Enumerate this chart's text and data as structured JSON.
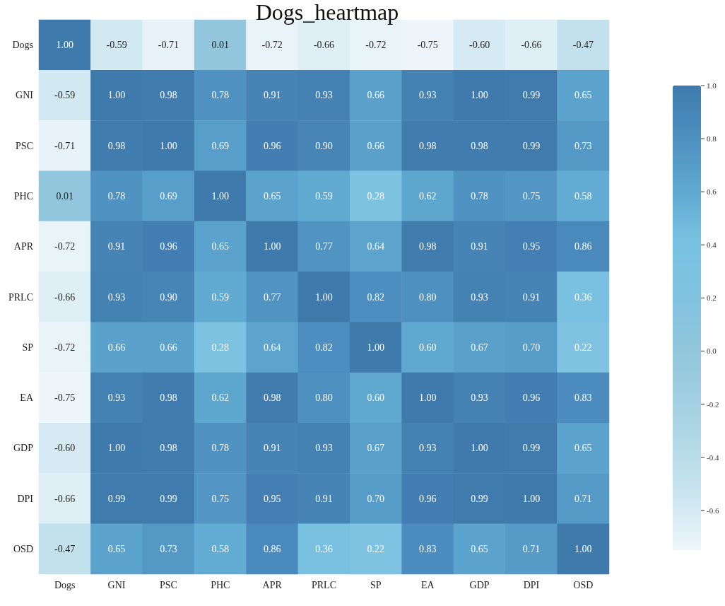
{
  "chart_data": {
    "type": "heatmap",
    "title": "Dogs_heartmap",
    "categories": [
      "Dogs",
      "GNI",
      "PSC",
      "PHC",
      "APR",
      "PRLC",
      "SP",
      "EA",
      "GDP",
      "DPI",
      "OSD"
    ],
    "y_categories": [
      "Dogs",
      "GNI",
      "PSC",
      "PHC",
      "APR",
      "PRLC",
      "SP",
      "EA",
      "GDP",
      "DPI",
      "OSD"
    ],
    "cells": [
      [
        1.0,
        -0.59,
        -0.71,
        0.01,
        -0.72,
        -0.66,
        -0.72,
        -0.75,
        -0.6,
        -0.66,
        -0.47
      ],
      [
        -0.59,
        1.0,
        0.98,
        0.78,
        0.91,
        0.93,
        0.66,
        0.93,
        1.0,
        0.99,
        0.65
      ],
      [
        -0.71,
        0.98,
        1.0,
        0.69,
        0.96,
        0.9,
        0.66,
        0.98,
        0.98,
        0.99,
        0.73
      ],
      [
        0.01,
        0.78,
        0.69,
        1.0,
        0.65,
        0.59,
        0.28,
        0.62,
        0.78,
        0.75,
        0.58
      ],
      [
        -0.72,
        0.91,
        0.96,
        0.65,
        1.0,
        0.77,
        0.64,
        0.98,
        0.91,
        0.95,
        0.86
      ],
      [
        -0.66,
        0.93,
        0.9,
        0.59,
        0.77,
        1.0,
        0.82,
        0.8,
        0.93,
        0.91,
        0.36
      ],
      [
        -0.72,
        0.66,
        0.66,
        0.28,
        0.64,
        0.82,
        1.0,
        0.6,
        0.67,
        0.7,
        0.22
      ],
      [
        -0.75,
        0.93,
        0.98,
        0.62,
        0.98,
        0.8,
        0.6,
        1.0,
        0.93,
        0.96,
        0.83
      ],
      [
        -0.6,
        1.0,
        0.98,
        0.78,
        0.91,
        0.93,
        0.67,
        0.93,
        1.0,
        0.99,
        0.65
      ],
      [
        -0.66,
        0.99,
        0.99,
        0.75,
        0.95,
        0.91,
        0.7,
        0.96,
        0.99,
        1.0,
        0.71
      ],
      [
        -0.47,
        0.65,
        0.73,
        0.58,
        0.86,
        0.36,
        0.22,
        0.83,
        0.65,
        0.71,
        1.0
      ]
    ],
    "cell_labels": [
      [
        "1.00",
        "-0.59",
        "-0.71",
        "0.01",
        "-0.72",
        "-0.66",
        "-0.72",
        "-0.75",
        "-0.60",
        "-0.66",
        "-0.47"
      ],
      [
        "-0.59",
        "1.00",
        "0.98",
        "0.78",
        "0.91",
        "0.93",
        "0.66",
        "0.93",
        "1.00",
        "0.99",
        "0.65"
      ],
      [
        "-0.71",
        "0.98",
        "1.00",
        "0.69",
        "0.96",
        "0.90",
        "0.66",
        "0.98",
        "0.98",
        "0.99",
        "0.73"
      ],
      [
        "0.01",
        "0.78",
        "0.69",
        "1.00",
        "0.65",
        "0.59",
        "0.28",
        "0.62",
        "0.78",
        "0.75",
        "0.58"
      ],
      [
        "-0.72",
        "0.91",
        "0.96",
        "0.65",
        "1.00",
        "0.77",
        "0.64",
        "0.98",
        "0.91",
        "0.95",
        "0.86"
      ],
      [
        "-0.66",
        "0.93",
        "0.90",
        "0.59",
        "0.77",
        "1.00",
        "0.82",
        "0.80",
        "0.93",
        "0.91",
        "0.36"
      ],
      [
        "-0.72",
        "0.66",
        "0.66",
        "0.28",
        "0.64",
        "0.82",
        "1.00",
        "0.60",
        "0.67",
        "0.70",
        "0.22"
      ],
      [
        "-0.75",
        "0.93",
        "0.98",
        "0.62",
        "0.98",
        "0.80",
        "0.60",
        "1.00",
        "0.93",
        "0.96",
        "0.83"
      ],
      [
        "-0.60",
        "1.00",
        "0.98",
        "0.78",
        "0.91",
        "0.93",
        "0.67",
        "0.93",
        "1.00",
        "0.99",
        "0.65"
      ],
      [
        "-0.66",
        "0.99",
        "0.99",
        "0.75",
        "0.95",
        "0.91",
        "0.70",
        "0.96",
        "0.99",
        "1.00",
        "0.71"
      ],
      [
        "-0.47",
        "0.65",
        "0.73",
        "0.58",
        "0.86",
        "0.36",
        "0.22",
        "0.83",
        "0.65",
        "0.71",
        "1.00"
      ]
    ],
    "clim": [
      -0.75,
      1.0
    ],
    "cticks": [
      {
        "value": -0.6,
        "label": "-0.6"
      },
      {
        "value": -0.4,
        "label": "-0.4"
      },
      {
        "value": -0.2,
        "label": "-0.2"
      },
      {
        "value": 0,
        "label": "0.0"
      },
      {
        "value": 0.2,
        "label": "0.2"
      },
      {
        "value": 0.4,
        "label": "0.4"
      },
      {
        "value": 0.6,
        "label": "0.6"
      },
      {
        "value": 0.8,
        "label": "0.8"
      },
      {
        "value": 1.0,
        "label": "1.0"
      }
    ],
    "colors": [
      "#eef6fb",
      "#cde6f0",
      "#b4dae7",
      "#a0cee0",
      "#8fc5dc",
      "#80c2e2",
      "#78c1e0",
      "#5ea8d0",
      "#4e8fc0",
      "#3f7aad"
    ]
  }
}
